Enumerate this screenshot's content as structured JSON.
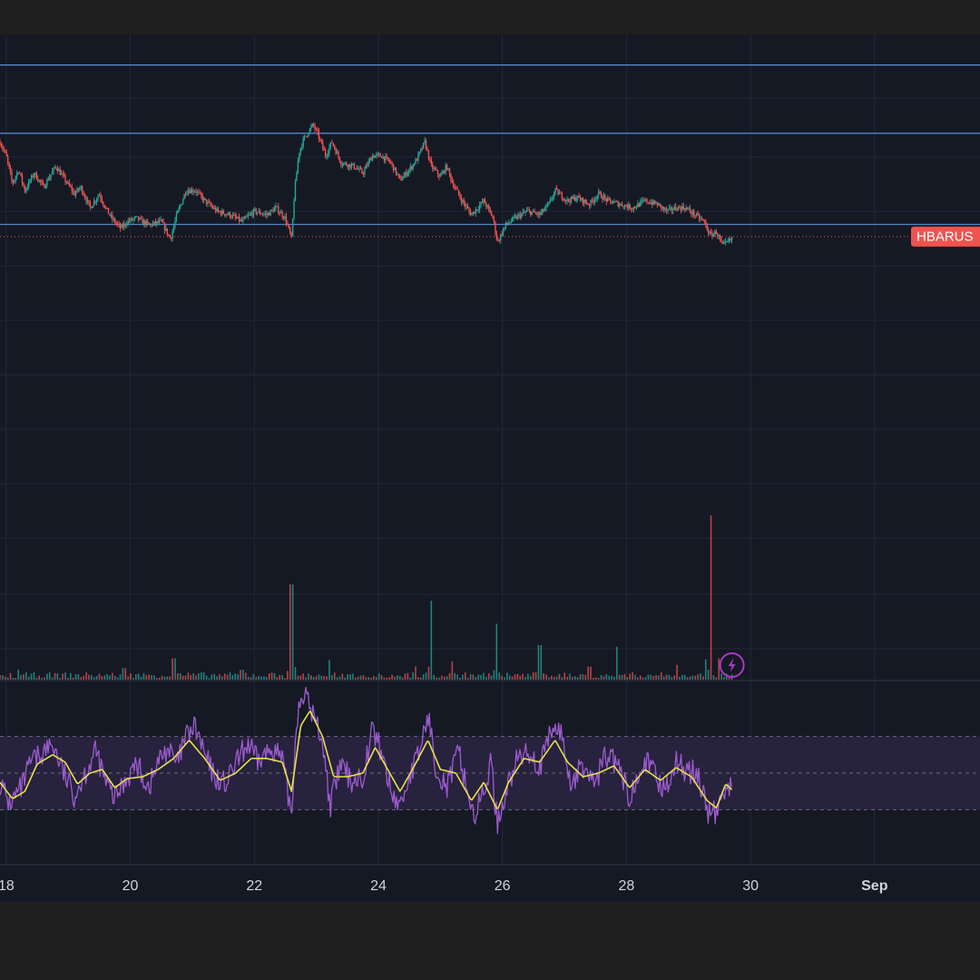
{
  "chart_data": {
    "type": "candlestick",
    "symbol_tag": "HBARUS",
    "colors": {
      "background": "#151924",
      "grid": "#232838",
      "up": "#26a69a",
      "down": "#ef5350",
      "level_line": "#5b8fd9",
      "last_price_line": "#ef5350",
      "rsi_line": "#9c5ccf",
      "rsi_ma": "#e6e14a",
      "rsi_band": "#2a2442",
      "alert_icon": "#a43cc2"
    },
    "x_axis": {
      "range_days": [
        17.9,
        33.7
      ],
      "ticks": [
        {
          "label": "18",
          "day": 18
        },
        {
          "label": "20",
          "day": 20
        },
        {
          "label": "22",
          "day": 22
        },
        {
          "label": "24",
          "day": 24
        },
        {
          "label": "26",
          "day": 26
        },
        {
          "label": "28",
          "day": 28
        },
        {
          "label": "30",
          "day": 30
        },
        {
          "label": "Sep",
          "day": 32
        }
      ]
    },
    "price_panel": {
      "ylim": [
        0,
        100
      ],
      "level_lines": [
        91.2,
        71.5,
        45.2
      ],
      "last_price": 41.7,
      "path": [
        [
          17.9,
          69
        ],
        [
          18.0,
          65
        ],
        [
          18.1,
          57
        ],
        [
          18.2,
          61
        ],
        [
          18.3,
          55
        ],
        [
          18.45,
          60
        ],
        [
          18.6,
          56
        ],
        [
          18.8,
          62
        ],
        [
          18.95,
          58
        ],
        [
          19.1,
          54
        ],
        [
          19.2,
          56
        ],
        [
          19.35,
          50
        ],
        [
          19.5,
          54
        ],
        [
          19.6,
          50
        ],
        [
          19.7,
          47
        ],
        [
          19.85,
          44
        ],
        [
          19.95,
          46
        ],
        [
          20.1,
          47
        ],
        [
          20.3,
          45
        ],
        [
          20.5,
          46
        ],
        [
          20.65,
          41
        ],
        [
          20.75,
          48
        ],
        [
          20.9,
          55
        ],
        [
          21.05,
          55
        ],
        [
          21.2,
          52
        ],
        [
          21.4,
          49
        ],
        [
          21.6,
          48
        ],
        [
          21.8,
          46
        ],
        [
          22.0,
          49
        ],
        [
          22.2,
          48
        ],
        [
          22.35,
          50
        ],
        [
          22.5,
          47
        ],
        [
          22.6,
          41
        ],
        [
          22.65,
          55
        ],
        [
          22.72,
          66
        ],
        [
          22.8,
          70
        ],
        [
          22.95,
          74
        ],
        [
          23.05,
          70
        ],
        [
          23.15,
          65
        ],
        [
          23.25,
          69
        ],
        [
          23.4,
          63
        ],
        [
          23.6,
          62
        ],
        [
          23.75,
          60
        ],
        [
          23.9,
          65
        ],
        [
          24.05,
          65
        ],
        [
          24.2,
          63
        ],
        [
          24.35,
          58
        ],
        [
          24.5,
          61
        ],
        [
          24.62,
          64
        ],
        [
          24.75,
          69
        ],
        [
          24.85,
          62
        ],
        [
          25.0,
          59
        ],
        [
          25.1,
          62
        ],
        [
          25.2,
          57
        ],
        [
          25.35,
          52
        ],
        [
          25.5,
          48
        ],
        [
          25.7,
          52
        ],
        [
          25.85,
          47
        ],
        [
          25.92,
          40
        ],
        [
          26.05,
          45
        ],
        [
          26.2,
          47
        ],
        [
          26.4,
          49
        ],
        [
          26.6,
          48
        ],
        [
          26.75,
          51
        ],
        [
          26.85,
          55
        ],
        [
          27.05,
          52
        ],
        [
          27.2,
          53
        ],
        [
          27.4,
          51
        ],
        [
          27.55,
          54
        ],
        [
          27.7,
          52
        ],
        [
          27.9,
          51
        ],
        [
          28.1,
          50
        ],
        [
          28.3,
          52
        ],
        [
          28.5,
          51
        ],
        [
          28.65,
          49
        ],
        [
          28.8,
          50
        ],
        [
          28.95,
          50
        ],
        [
          29.1,
          48
        ],
        [
          29.25,
          46
        ],
        [
          29.35,
          42
        ],
        [
          29.45,
          43
        ],
        [
          29.55,
          39
        ],
        [
          29.7,
          41
        ]
      ]
    },
    "volume_panel": {
      "ylim": [
        0,
        100
      ],
      "spikes": [
        [
          18.2,
          6
        ],
        [
          19.9,
          7
        ],
        [
          20.7,
          13
        ],
        [
          21.8,
          6
        ],
        [
          22.6,
          58
        ],
        [
          23.2,
          12
        ],
        [
          24.6,
          8
        ],
        [
          24.85,
          48
        ],
        [
          25.2,
          11
        ],
        [
          25.92,
          34
        ],
        [
          26.6,
          21
        ],
        [
          27.4,
          8
        ],
        [
          27.85,
          20
        ],
        [
          28.8,
          9
        ],
        [
          29.35,
          100
        ],
        [
          29.5,
          13
        ]
      ]
    },
    "rsi_panel": {
      "ylim": [
        0,
        100
      ],
      "bands": [
        70,
        50,
        30
      ],
      "fast_path": [
        [
          17.9,
          45
        ],
        [
          18.05,
          33
        ],
        [
          18.25,
          42
        ],
        [
          18.4,
          56
        ],
        [
          18.55,
          60
        ],
        [
          18.75,
          66
        ],
        [
          18.95,
          48
        ],
        [
          19.1,
          38
        ],
        [
          19.3,
          52
        ],
        [
          19.45,
          62
        ],
        [
          19.6,
          45
        ],
        [
          19.75,
          36
        ],
        [
          19.95,
          48
        ],
        [
          20.1,
          55
        ],
        [
          20.3,
          42
        ],
        [
          20.45,
          56
        ],
        [
          20.6,
          64
        ],
        [
          20.75,
          54
        ],
        [
          20.9,
          70
        ],
        [
          21.05,
          75
        ],
        [
          21.2,
          60
        ],
        [
          21.35,
          48
        ],
        [
          21.55,
          44
        ],
        [
          21.7,
          55
        ],
        [
          21.9,
          66
        ],
        [
          22.05,
          56
        ],
        [
          22.3,
          64
        ],
        [
          22.45,
          57
        ],
        [
          22.6,
          27
        ],
        [
          22.68,
          80
        ],
        [
          22.78,
          95
        ],
        [
          22.95,
          82
        ],
        [
          23.1,
          68
        ],
        [
          23.22,
          32
        ],
        [
          23.4,
          55
        ],
        [
          23.55,
          46
        ],
        [
          23.75,
          48
        ],
        [
          23.9,
          74
        ],
        [
          24.05,
          62
        ],
        [
          24.2,
          40
        ],
        [
          24.35,
          32
        ],
        [
          24.5,
          48
        ],
        [
          24.65,
          60
        ],
        [
          24.8,
          82
        ],
        [
          24.92,
          55
        ],
        [
          25.1,
          42
        ],
        [
          25.3,
          62
        ],
        [
          25.45,
          38
        ],
        [
          25.55,
          26
        ],
        [
          25.7,
          40
        ],
        [
          25.82,
          56
        ],
        [
          25.92,
          22
        ],
        [
          26.05,
          40
        ],
        [
          26.25,
          58
        ],
        [
          26.45,
          62
        ],
        [
          26.6,
          52
        ],
        [
          26.8,
          74
        ],
        [
          26.95,
          72
        ],
        [
          27.1,
          44
        ],
        [
          27.3,
          54
        ],
        [
          27.5,
          44
        ],
        [
          27.65,
          60
        ],
        [
          27.85,
          55
        ],
        [
          28.05,
          36
        ],
        [
          28.25,
          58
        ],
        [
          28.45,
          50
        ],
        [
          28.6,
          41
        ],
        [
          28.8,
          56
        ],
        [
          28.95,
          52
        ],
        [
          29.15,
          49
        ],
        [
          29.25,
          37
        ],
        [
          29.35,
          26
        ],
        [
          29.5,
          31
        ],
        [
          29.62,
          46
        ],
        [
          29.7,
          41
        ]
      ],
      "ma_path": [
        [
          17.9,
          45
        ],
        [
          18.1,
          36
        ],
        [
          18.3,
          40
        ],
        [
          18.5,
          55
        ],
        [
          18.75,
          60
        ],
        [
          18.95,
          56
        ],
        [
          19.15,
          44
        ],
        [
          19.35,
          50
        ],
        [
          19.55,
          52
        ],
        [
          19.75,
          42
        ],
        [
          19.95,
          47
        ],
        [
          20.2,
          48
        ],
        [
          20.45,
          52
        ],
        [
          20.7,
          58
        ],
        [
          20.95,
          68
        ],
        [
          21.2,
          58
        ],
        [
          21.45,
          46
        ],
        [
          21.7,
          50
        ],
        [
          21.95,
          58
        ],
        [
          22.2,
          58
        ],
        [
          22.45,
          56
        ],
        [
          22.6,
          40
        ],
        [
          22.75,
          76
        ],
        [
          22.9,
          84
        ],
        [
          23.1,
          70
        ],
        [
          23.28,
          48
        ],
        [
          23.5,
          48
        ],
        [
          23.75,
          50
        ],
        [
          23.95,
          64
        ],
        [
          24.15,
          52
        ],
        [
          24.35,
          40
        ],
        [
          24.55,
          52
        ],
        [
          24.8,
          68
        ],
        [
          25.0,
          52
        ],
        [
          25.25,
          50
        ],
        [
          25.5,
          35
        ],
        [
          25.7,
          45
        ],
        [
          25.92,
          30
        ],
        [
          26.1,
          45
        ],
        [
          26.35,
          58
        ],
        [
          26.6,
          56
        ],
        [
          26.85,
          68
        ],
        [
          27.05,
          56
        ],
        [
          27.3,
          48
        ],
        [
          27.55,
          50
        ],
        [
          27.8,
          54
        ],
        [
          28.05,
          42
        ],
        [
          28.3,
          52
        ],
        [
          28.55,
          46
        ],
        [
          28.8,
          53
        ],
        [
          29.05,
          48
        ],
        [
          29.3,
          35
        ],
        [
          29.45,
          31
        ],
        [
          29.6,
          44
        ],
        [
          29.7,
          41
        ]
      ]
    }
  }
}
